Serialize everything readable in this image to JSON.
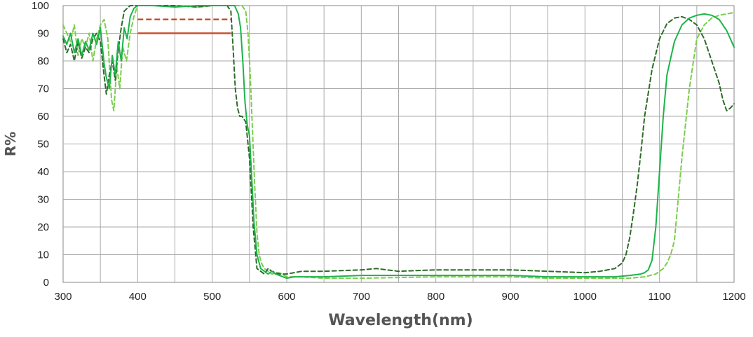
{
  "chart_data": {
    "type": "line",
    "title": "",
    "xlabel": "Wavelength(nm)",
    "ylabel": "R%",
    "xlim": [
      300,
      1200
    ],
    "ylim": [
      0,
      100
    ],
    "xticks": [
      "300",
      "400",
      "500",
      "600",
      "700",
      "800",
      "900",
      "1000",
      "1100",
      "1200"
    ],
    "yticks": [
      "0",
      "10",
      "20",
      "30",
      "40",
      "50",
      "60",
      "70",
      "80",
      "90",
      "100"
    ],
    "grid": true,
    "legend": "none",
    "series": [
      {
        "style": "solid",
        "color": "#1db34a",
        "x": [
          300,
          305,
          310,
          315,
          320,
          325,
          330,
          335,
          340,
          345,
          350,
          355,
          358,
          362,
          366,
          370,
          374,
          378,
          382,
          386,
          390,
          395,
          400,
          420,
          450,
          480,
          500,
          520,
          530,
          535,
          538,
          541,
          544,
          547,
          550,
          553,
          556,
          560,
          565,
          570,
          575,
          580,
          585,
          590,
          595,
          600,
          610,
          620,
          650,
          700,
          800,
          900,
          950,
          1000,
          1040,
          1060,
          1075,
          1080,
          1085,
          1090,
          1095,
          1100,
          1105,
          1110,
          1120,
          1130,
          1140,
          1150,
          1160,
          1170,
          1180,
          1190,
          1195,
          1200
        ],
        "y": [
          89,
          86,
          90,
          83,
          88,
          82,
          87,
          84,
          90,
          86,
          92,
          79,
          74,
          70,
          82,
          75,
          87,
          80,
          92,
          88,
          96,
          99,
          100,
          100,
          99.5,
          100,
          100,
          100,
          100,
          97,
          92,
          80,
          65,
          57,
          53,
          38,
          22,
          10,
          5,
          4,
          3,
          4,
          3,
          2.5,
          2,
          1.5,
          2,
          2,
          2,
          2.5,
          2.5,
          2.5,
          2,
          2,
          2,
          2.5,
          3,
          3.5,
          4.5,
          8,
          20,
          40,
          60,
          75,
          87,
          93,
          95.5,
          96.5,
          97,
          96.5,
          95,
          91,
          88,
          85
        ]
      },
      {
        "style": "dashed",
        "color": "#2e6b2a",
        "x": [
          300,
          305,
          310,
          315,
          320,
          325,
          330,
          335,
          340,
          345,
          350,
          354,
          358,
          362,
          366,
          370,
          374,
          378,
          382,
          386,
          390,
          400,
          420,
          450,
          480,
          500,
          520,
          525,
          528,
          531,
          534,
          537,
          540,
          545,
          550,
          555,
          560,
          565,
          570,
          575,
          580,
          590,
          600,
          620,
          650,
          700,
          720,
          750,
          800,
          850,
          900,
          950,
          1000,
          1020,
          1040,
          1050,
          1055,
          1060,
          1065,
          1070,
          1075,
          1080,
          1090,
          1100,
          1110,
          1120,
          1130,
          1140,
          1150,
          1160,
          1170,
          1180,
          1185,
          1190,
          1195,
          1200
        ],
        "y": [
          88,
          83,
          86,
          80,
          87,
          81,
          85,
          83,
          88,
          90,
          87,
          77,
          68,
          75,
          80,
          73,
          84,
          92,
          98,
          99,
          100,
          100,
          100,
          100,
          99.5,
          100,
          100,
          98,
          85,
          70,
          63,
          60,
          60,
          58,
          45,
          20,
          5,
          4,
          3,
          5,
          4,
          3,
          3,
          4,
          4,
          4.5,
          5,
          4,
          4.5,
          4.5,
          4.5,
          4,
          3.5,
          4,
          5,
          7,
          10,
          16,
          25,
          35,
          47,
          60,
          77,
          88,
          93.5,
          95.5,
          96,
          95,
          93,
          88,
          80,
          72,
          66,
          62,
          63,
          64.5
        ]
      },
      {
        "style": "dashed",
        "color": "#7ccd4e",
        "x": [
          300,
          305,
          310,
          315,
          320,
          325,
          330,
          335,
          340,
          345,
          350,
          355,
          360,
          365,
          368,
          372,
          376,
          380,
          385,
          390,
          395,
          400,
          420,
          450,
          480,
          500,
          520,
          540,
          545,
          548,
          551,
          554,
          557,
          560,
          563,
          566,
          570,
          575,
          580,
          590,
          600,
          620,
          650,
          700,
          800,
          900,
          950,
          1000,
          1060,
          1080,
          1095,
          1100,
          1105,
          1110,
          1115,
          1120,
          1125,
          1130,
          1140,
          1150,
          1160,
          1170,
          1180,
          1190,
          1200
        ],
        "y": [
          93,
          90,
          87,
          93,
          82,
          88,
          85,
          90,
          80,
          88,
          93,
          95,
          88,
          66,
          62,
          78,
          70,
          85,
          80,
          90,
          96,
          100,
          100,
          100,
          99.5,
          100,
          100,
          100,
          98,
          90,
          75,
          55,
          35,
          18,
          10,
          7,
          5,
          4,
          3,
          3.5,
          2,
          2,
          1.5,
          1.5,
          2,
          2,
          1.5,
          1.5,
          1.5,
          2,
          3,
          4,
          5,
          7,
          10,
          15,
          30,
          45,
          70,
          88,
          93,
          95.5,
          96.5,
          97,
          97.5
        ]
      }
    ],
    "annotations": [
      {
        "style": "dashed",
        "color": "#c8502d",
        "x": [
          400,
          525
        ],
        "y": [
          95,
          95
        ]
      },
      {
        "style": "solid",
        "color": "#c8502d",
        "x": [
          400,
          525
        ],
        "y": [
          90,
          90
        ]
      }
    ]
  }
}
